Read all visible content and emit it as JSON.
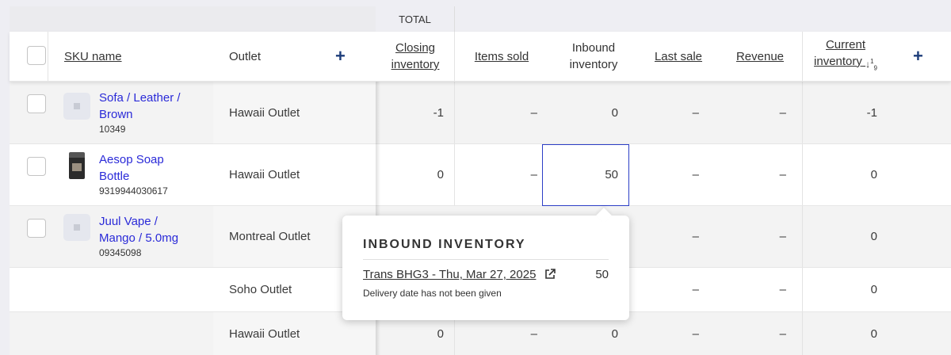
{
  "total_label": "TOTAL",
  "columns": {
    "sku_name": "SKU name",
    "outlet": "Outlet",
    "closing_inventory": [
      "Closing",
      "inventory"
    ],
    "items_sold": "Items sold",
    "inbound_inventory": [
      "Inbound",
      "inventory"
    ],
    "last_sale": "Last sale",
    "revenue": "Revenue",
    "current_inventory": [
      "Current",
      "inventory"
    ],
    "sort_icon": "sort-descending-1-9-icon"
  },
  "rows": [
    {
      "product": {
        "name_lines": [
          "Sofa / Leather /",
          "Brown"
        ],
        "code": "10349",
        "thumb": "placeholder"
      },
      "outlet": "Hawaii Outlet",
      "closing": "-1",
      "sold": "–",
      "inbound": "0",
      "last_sale": "–",
      "revenue": "–",
      "current": "-1"
    },
    {
      "product": {
        "name_lines": [
          "Aesop Soap",
          "Bottle"
        ],
        "code": "9319944030617",
        "thumb": "photo"
      },
      "outlet": "Hawaii Outlet",
      "closing": "0",
      "sold": "–",
      "inbound": "50",
      "last_sale": "–",
      "revenue": "–",
      "current": "0"
    },
    {
      "product": {
        "name_lines": [
          "Juul Vape /",
          "Mango / 5.0mg"
        ],
        "code": "09345098",
        "thumb": "placeholder"
      },
      "outlet": "Montreal Outlet",
      "closing": "",
      "sold": "",
      "inbound": "",
      "last_sale": "–",
      "revenue": "–",
      "current": "0"
    },
    {
      "product": null,
      "outlet": "Soho Outlet",
      "closing": "",
      "sold": "",
      "inbound": "",
      "last_sale": "–",
      "revenue": "–",
      "current": "0"
    },
    {
      "product": null,
      "outlet": "Hawaii Outlet",
      "closing": "0",
      "sold": "–",
      "inbound": "0",
      "last_sale": "–",
      "revenue": "–",
      "current": "0"
    }
  ],
  "popover": {
    "title": "INBOUND INVENTORY",
    "link_text": "Trans BHG3 - Thu, Mar 27, 2025",
    "value": "50",
    "note": "Delivery date has not been given"
  },
  "colors": {
    "link": "#2a2ad8",
    "accent": "#1d3d7a",
    "selection": "#2c3ec6"
  }
}
